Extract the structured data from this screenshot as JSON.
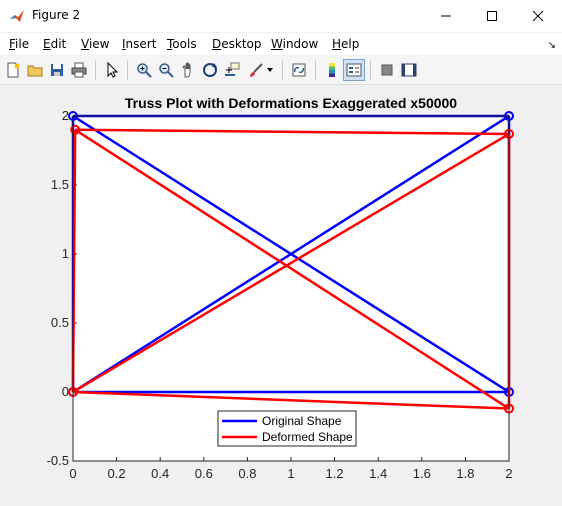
{
  "window": {
    "title": "Figure 2"
  },
  "menu": [
    {
      "label": "File",
      "u": "F",
      "rest": "ile"
    },
    {
      "label": "Edit",
      "u": "E",
      "rest": "dit"
    },
    {
      "label": "View",
      "u": "V",
      "rest": "iew"
    },
    {
      "label": "Insert",
      "u": "I",
      "rest": "nsert"
    },
    {
      "label": "Tools",
      "u": "T",
      "rest": "ools"
    },
    {
      "label": "Desktop",
      "u": "D",
      "rest": "esktop"
    },
    {
      "label": "Window",
      "u": "W",
      "rest": "indow"
    },
    {
      "label": "Help",
      "u": "H",
      "rest": "elp"
    }
  ],
  "toolbar": [
    "new-figure-icon",
    "open-file-icon",
    "save-icon",
    "print-icon",
    "pointer-icon",
    "zoom-in-icon",
    "zoom-out-icon",
    "pan-icon",
    "rotate-3d-icon",
    "data-cursor-icon",
    "brush-icon",
    "link-plot-icon",
    "colorbar-icon",
    "legend-icon",
    "hide-plot-tools-icon",
    "show-plot-tools-icon"
  ],
  "chart_data": {
    "type": "line",
    "title": "Truss Plot with Deformations Exaggerated x50000",
    "xlabel": "",
    "ylabel": "",
    "xlim": [
      0,
      2
    ],
    "ylim": [
      -0.5,
      2
    ],
    "x_ticks": [
      "0",
      "0.2",
      "0.4",
      "0.6",
      "0.8",
      "1",
      "1.2",
      "1.4",
      "1.6",
      "1.8",
      "2"
    ],
    "y_ticks": [
      "-0.5",
      "0",
      "0.5",
      "1",
      "1.5",
      "2"
    ],
    "grid": false,
    "legend_position": "bottom-center",
    "series": [
      {
        "name": "Original Shape",
        "color": "#0000ff",
        "marker": "circle",
        "nodes": [
          [
            0,
            0
          ],
          [
            2,
            0
          ],
          [
            2,
            2
          ],
          [
            0,
            2
          ]
        ],
        "members": [
          [
            0,
            1
          ],
          [
            1,
            2
          ],
          [
            2,
            3
          ],
          [
            3,
            0
          ],
          [
            0,
            2
          ],
          [
            1,
            3
          ]
        ]
      },
      {
        "name": "Deformed Shape",
        "color": "#ff0000",
        "marker": "circle",
        "nodes": [
          [
            0,
            0
          ],
          [
            2,
            -0.12
          ],
          [
            2,
            1.87
          ],
          [
            0.01,
            1.9
          ]
        ],
        "members": [
          [
            0,
            1
          ],
          [
            1,
            2
          ],
          [
            2,
            3
          ],
          [
            3,
            0
          ],
          [
            0,
            2
          ],
          [
            1,
            3
          ]
        ]
      }
    ]
  }
}
